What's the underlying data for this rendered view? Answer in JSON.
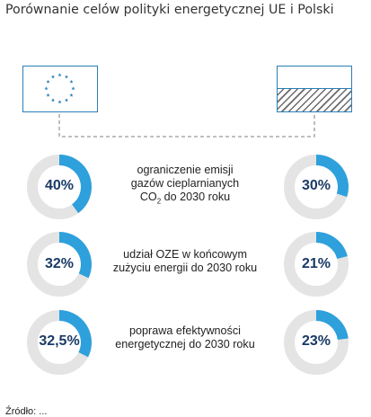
{
  "title": "Porównanie celów polityki energetycznej UE i Polski",
  "flags": {
    "left": "eu-flag",
    "right": "poland-flag"
  },
  "colors": {
    "accent": "#2ea0dc",
    "track": "#e4e4e4",
    "label": "#1a3a66",
    "flag_border": "#2a7fb8",
    "eu_star": "#2a7fb8"
  },
  "chart_data": {
    "type": "donut",
    "series": [
      {
        "name": "UE",
        "values": [
          40,
          32,
          32.5
        ],
        "labels": [
          "40%",
          "32%",
          "32,5%"
        ]
      },
      {
        "name": "Polska",
        "values": [
          30,
          21,
          23
        ],
        "labels": [
          "30%",
          "21%",
          "23%"
        ]
      }
    ],
    "categories": [
      {
        "line1": "ograniczenie emisji",
        "line2": "gazów cieplarnianych",
        "line3_main": "CO",
        "line3_sub": "2",
        "line3_tail": " do 2030 roku"
      },
      {
        "line1": "udział OZE w końcowym",
        "line2": "zużyciu energii do 2030 roku"
      },
      {
        "line1": "poprawa efektywności",
        "line2": "energetycznej do 2030 roku"
      }
    ],
    "max": 100
  },
  "source_label": "Źródło: ..."
}
